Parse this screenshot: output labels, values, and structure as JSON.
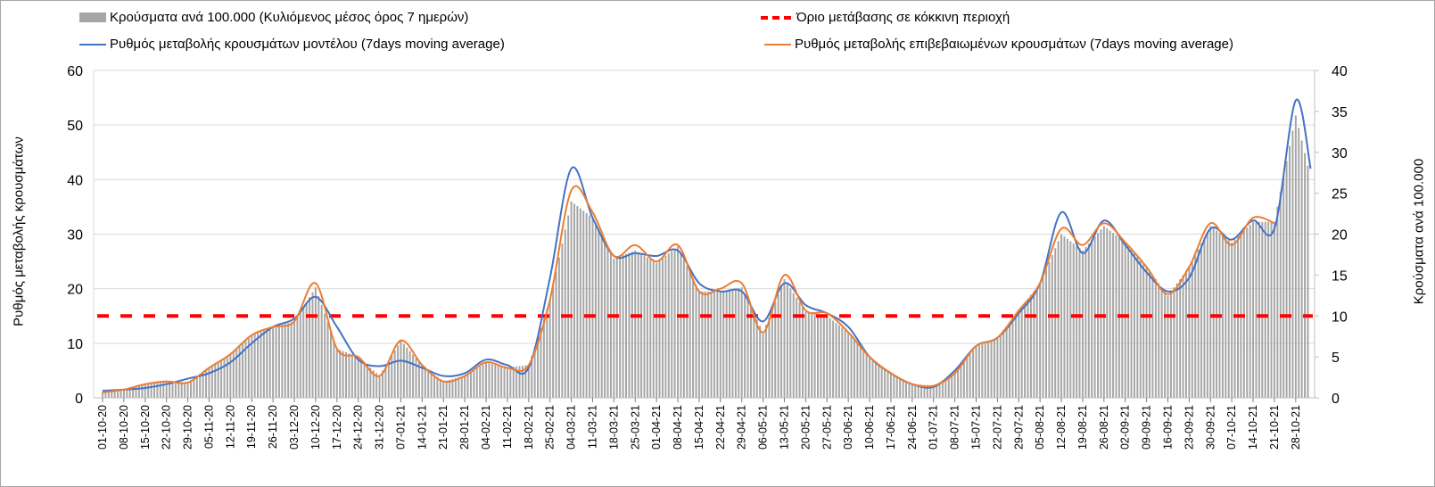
{
  "chart_data": {
    "type": "bar+line",
    "legend": {
      "bars": "Κρούσματα ανά 100.000 (Κυλιόμενος μέσος όρος 7 ημερών)",
      "threshold": "Όριο μετάβασης σε κόκκινη περιοχή",
      "model": "Ρυθμός μεταβολής κρουσμάτων μοντέλου (7days moving average)",
      "confirmed": "Ρυθμός μεταβολής επιβεβαιωμένων κρουσμάτων (7days moving average)"
    },
    "ylabel_left": "Ρυθμός μεταβολής κρουσμάτων",
    "ylabel_right": "Κρούσματα ανά 100.000",
    "ylim_left": [
      0,
      60
    ],
    "ylim_right": [
      0,
      40
    ],
    "yticks_left": [
      "0",
      "10",
      "20",
      "30",
      "40",
      "50",
      "60"
    ],
    "yticks_right": [
      "0",
      "5",
      "10",
      "15",
      "20",
      "25",
      "30",
      "35",
      "40"
    ],
    "x_unit": "weeks since 01-10-20",
    "xticks": [
      "01-10-20",
      "08-10-20",
      "15-10-20",
      "22-10-20",
      "29-10-20",
      "05-11-20",
      "12-11-20",
      "19-11-20",
      "26-11-20",
      "03-12-20",
      "10-12-20",
      "17-12-20",
      "24-12-20",
      "31-12-20",
      "07-01-21",
      "14-01-21",
      "21-01-21",
      "28-01-21",
      "04-02-21",
      "11-02-21",
      "18-02-21",
      "25-02-21",
      "04-03-21",
      "11-03-21",
      "18-03-21",
      "25-03-21",
      "01-04-21",
      "08-04-21",
      "15-04-21",
      "22-04-21",
      "29-04-21",
      "06-05-21",
      "13-05-21",
      "20-05-21",
      "27-05-21",
      "03-06-21",
      "10-06-21",
      "17-06-21",
      "24-06-21",
      "01-07-21",
      "08-07-21",
      "15-07-21",
      "22-07-21",
      "29-07-21",
      "05-08-21",
      "12-08-21",
      "19-08-21",
      "26-08-21",
      "02-09-21",
      "09-09-21",
      "16-09-21",
      "23-09-21",
      "30-09-21",
      "07-10-21",
      "14-10-21",
      "21-10-21",
      "28-10-21"
    ],
    "threshold_left": 15,
    "bars": {
      "axis": "right",
      "x": [
        0,
        1,
        2,
        3,
        4,
        5,
        6,
        7,
        8,
        9,
        10,
        11,
        12,
        13,
        14,
        15,
        16,
        17,
        18,
        19,
        20,
        21,
        22,
        23,
        24,
        25,
        26,
        27,
        28,
        29,
        30,
        31,
        32,
        33,
        34,
        35,
        36,
        37,
        38,
        39,
        40,
        41,
        42,
        43,
        44,
        45,
        46,
        47,
        48,
        49,
        50,
        51,
        52,
        53,
        54,
        55,
        56,
        56.7
      ],
      "values": [
        0.7,
        1.0,
        1.7,
        2.0,
        1.9,
        3.7,
        5.3,
        7.7,
        8.7,
        9.3,
        13.5,
        6,
        5,
        2.7,
        7,
        4,
        2,
        2.7,
        4.3,
        3.7,
        4,
        12,
        24,
        22,
        17,
        18,
        16.5,
        18.5,
        13,
        13,
        13.5,
        8,
        14.5,
        10.5,
        10,
        8,
        5,
        3,
        1.7,
        1.5,
        3,
        6.3,
        7.3,
        10.7,
        14,
        20,
        18,
        21,
        19,
        16,
        12.5,
        16,
        21,
        19,
        21.5,
        21.5,
        34.5,
        27
      ]
    },
    "series": [
      {
        "name": "model",
        "axis": "left",
        "color": "#4472c4",
        "x": [
          0,
          1,
          2,
          3,
          4,
          5,
          6,
          7,
          8,
          9,
          10,
          11,
          12,
          13,
          14,
          15,
          16,
          17,
          18,
          19,
          20,
          21,
          22,
          23,
          24,
          25,
          26,
          27,
          28,
          29,
          30,
          31,
          32,
          33,
          34,
          35,
          36,
          37,
          38,
          39,
          40,
          41,
          42,
          43,
          44,
          45,
          46,
          47,
          48,
          49,
          50,
          51,
          52,
          53,
          54,
          55,
          56,
          56.7
        ],
        "values": [
          1.3,
          1.5,
          1.8,
          2.5,
          3.5,
          4.5,
          6.5,
          10,
          13,
          14.5,
          18.5,
          13,
          7,
          5.8,
          6.8,
          5.5,
          4,
          4.5,
          7,
          6,
          5.5,
          22,
          42,
          33,
          26,
          26.5,
          26,
          27,
          21,
          19.5,
          19.5,
          14,
          21,
          17,
          15.5,
          13,
          7.5,
          4.5,
          2.5,
          2,
          5,
          9.5,
          11,
          15.5,
          21,
          34,
          26.5,
          32.5,
          28,
          23,
          19.5,
          22,
          31,
          29,
          32.5,
          31,
          54.5,
          42
        ]
      },
      {
        "name": "confirmed",
        "axis": "left",
        "color": "#ed7d31",
        "x": [
          0,
          1,
          2,
          3,
          4,
          5,
          6,
          7,
          8,
          9,
          10,
          11,
          12,
          13,
          14,
          15,
          16,
          17,
          18,
          19,
          20,
          21,
          22,
          23,
          24,
          25,
          26,
          27,
          28,
          29,
          30,
          31,
          32,
          33,
          34,
          35,
          36,
          37,
          38,
          39,
          40,
          41,
          42,
          43,
          44,
          45,
          46,
          47,
          48,
          49,
          50,
          51,
          52,
          53,
          54,
          55
        ],
        "values": [
          1.0,
          1.5,
          2.5,
          3.0,
          2.8,
          5.5,
          8,
          11.5,
          13,
          14,
          21,
          9,
          7.5,
          4,
          10.5,
          6,
          3,
          4,
          6.5,
          5.5,
          6,
          18,
          38,
          34,
          26,
          28,
          25,
          28,
          19.5,
          20,
          21,
          12,
          22.5,
          16,
          15.5,
          12,
          7.5,
          4.5,
          2.5,
          2.2,
          4.5,
          9.5,
          11,
          16,
          21,
          31,
          28,
          32,
          28.5,
          24,
          19,
          24,
          32,
          28,
          33,
          32
        ]
      }
    ],
    "colors": {
      "bars": "#a6a6a6",
      "threshold": "#ff0000",
      "model": "#4472c4",
      "confirmed": "#ed7d31"
    },
    "grid": true
  }
}
